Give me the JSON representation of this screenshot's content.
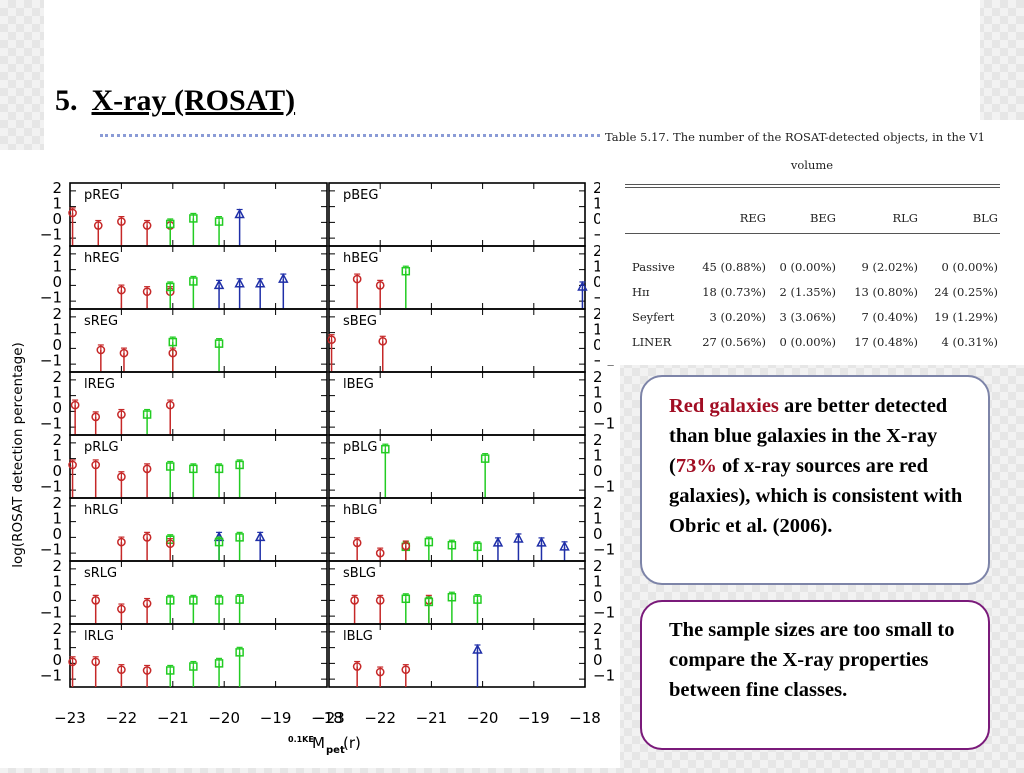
{
  "slide": {
    "number": "5.",
    "title": "X-ray (ROSAT)"
  },
  "table": {
    "caption_line1": "Table 5.17.    The number of the ROSAT-detected objects, in the V1",
    "caption_line2": "volume",
    "columns": [
      "",
      "REG",
      "BEG",
      "RLG",
      "BLG"
    ],
    "rows": [
      [
        "Passive",
        "45 (0.88%)",
        "0 (0.00%)",
        "9 (2.02%)",
        "0 (0.00%)"
      ],
      [
        "Hɪɪ",
        "18 (0.73%)",
        "2 (1.35%)",
        "13 (0.80%)",
        "24 (0.25%)"
      ],
      [
        "Seyfert",
        "3 (0.20%)",
        "3 (3.06%)",
        "7 (0.40%)",
        "19 (1.29%)"
      ],
      [
        "LINER",
        "27 (0.56%)",
        "0 (0.00%)",
        "17 (0.48%)",
        "4 (0.31%)"
      ]
    ]
  },
  "box1": {
    "highlight1": "Red galaxies",
    "text1": " are better detected than blue galaxies in the X-ray (",
    "highlight2": "73%",
    "text2": " of x-ray sources are red galaxies), which is consistent with Obric et al. (2006)."
  },
  "box2": {
    "text": "The sample sizes are too small to compare the X-ray properties between fine classes."
  },
  "figure": {
    "ylabel": "log(ROSAT detection percentage)",
    "xlabel_sup": "0.1KE",
    "xlabel_main": "M",
    "xlabel_sub": "pet",
    "xlabel_tail": "(r)",
    "x_ticks_left": [
      "−23",
      "−22",
      "−21",
      "−20",
      "−19",
      "−18"
    ],
    "x_ticks_right": [
      "−23",
      "−22",
      "−21",
      "−20",
      "−19",
      "−18"
    ],
    "y_ticks": [
      "2",
      "1",
      "0",
      "−1"
    ],
    "colors": {
      "red": "#c62828",
      "green": "#22cc22",
      "blue": "#1f2fa8"
    }
  },
  "chart_data": {
    "type": "scatter",
    "xlabel": "0.1KE M pet (r)",
    "ylabel": "log(ROSAT detection percentage)",
    "xlim": [
      -23,
      -18
    ],
    "ylim": [
      -1.5,
      2.5
    ],
    "series_colors": {
      "red": "#c62828",
      "green": "#22cc22",
      "blue": "#1f2fa8"
    },
    "panels": [
      {
        "name": "pREG",
        "points": [
          [
            -22.95,
            0.6,
            "red"
          ],
          [
            -22.45,
            -0.2,
            "red"
          ],
          [
            -22,
            0.05,
            "red"
          ],
          [
            -21.5,
            -0.2,
            "red"
          ],
          [
            -21.05,
            -0.2,
            "red"
          ],
          [
            -21.05,
            -0.1,
            "green"
          ],
          [
            -20.6,
            0.25,
            "green"
          ],
          [
            -20.1,
            0.05,
            "green"
          ],
          [
            -19.7,
            0.5,
            "blue"
          ]
        ]
      },
      {
        "name": "pBEG",
        "points": []
      },
      {
        "name": "hREG",
        "points": [
          [
            -22,
            -0.3,
            "red"
          ],
          [
            -21.5,
            -0.4,
            "red"
          ],
          [
            -21.05,
            -0.4,
            "red"
          ],
          [
            -21.05,
            -0.1,
            "green"
          ],
          [
            -20.6,
            0.25,
            "green"
          ],
          [
            -20.1,
            0,
            "blue"
          ],
          [
            -19.7,
            0.1,
            "blue"
          ],
          [
            -19.3,
            0.1,
            "blue"
          ],
          [
            -18.85,
            0.4,
            "blue"
          ]
        ]
      },
      {
        "name": "hBEG",
        "points": [
          [
            -22.45,
            0.4,
            "red"
          ],
          [
            -22,
            0,
            "red"
          ],
          [
            -21.5,
            0.9,
            "green"
          ],
          [
            -18.05,
            -0.1,
            "blue"
          ]
        ]
      },
      {
        "name": "sREG",
        "points": [
          [
            -22.4,
            -0.1,
            "red"
          ],
          [
            -21.95,
            -0.3,
            "red"
          ],
          [
            -21,
            0.4,
            "green"
          ],
          [
            -21,
            -0.3,
            "red"
          ],
          [
            -20.1,
            0.3,
            "green"
          ]
        ]
      },
      {
        "name": "sBEG",
        "points": [
          [
            -22.95,
            0.55,
            "red"
          ],
          [
            -21.95,
            0.45,
            "red"
          ]
        ]
      },
      {
        "name": "lREG",
        "points": [
          [
            -22.9,
            0.4,
            "red"
          ],
          [
            -22.5,
            -0.35,
            "red"
          ],
          [
            -22,
            -0.2,
            "red"
          ],
          [
            -21.5,
            -0.2,
            "green"
          ],
          [
            -21.05,
            0.4,
            "red"
          ]
        ]
      },
      {
        "name": "lBEG",
        "points": []
      },
      {
        "name": "pRLG",
        "points": [
          [
            -22.95,
            0.6,
            "red"
          ],
          [
            -22.5,
            0.6,
            "red"
          ],
          [
            -22,
            -0.15,
            "red"
          ],
          [
            -21.5,
            0.35,
            "red"
          ],
          [
            -21.05,
            0.5,
            "green"
          ],
          [
            -20.6,
            0.35,
            "green"
          ],
          [
            -20.1,
            0.35,
            "green"
          ],
          [
            -19.7,
            0.6,
            "green"
          ]
        ]
      },
      {
        "name": "pBLG",
        "points": [
          [
            -21.9,
            1.6,
            "green"
          ],
          [
            -19.95,
            1,
            "green"
          ]
        ]
      },
      {
        "name": "hRLG",
        "points": [
          [
            -22,
            -0.3,
            "red"
          ],
          [
            -21.5,
            0,
            "red"
          ],
          [
            -21.05,
            -0.15,
            "green"
          ],
          [
            -21.05,
            -0.4,
            "red"
          ],
          [
            -20.1,
            0,
            "blue"
          ],
          [
            -20.1,
            -0.3,
            "green"
          ],
          [
            -19.7,
            0,
            "green"
          ],
          [
            -19.3,
            0,
            "blue"
          ]
        ]
      },
      {
        "name": "hBLG",
        "points": [
          [
            -22.45,
            -0.35,
            "red"
          ],
          [
            -22,
            -1,
            "red"
          ],
          [
            -21.5,
            -0.6,
            "green"
          ],
          [
            -21.5,
            -0.55,
            "red"
          ],
          [
            -21.05,
            -0.3,
            "green"
          ],
          [
            -20.6,
            -0.5,
            "green"
          ],
          [
            -20.1,
            -0.6,
            "green"
          ],
          [
            -19.7,
            -0.35,
            "blue"
          ],
          [
            -19.3,
            -0.1,
            "blue"
          ],
          [
            -18.85,
            -0.35,
            "blue"
          ],
          [
            -18.4,
            -0.6,
            "blue"
          ]
        ]
      },
      {
        "name": "sRLG",
        "points": [
          [
            -22.5,
            0,
            "red"
          ],
          [
            -22,
            -0.55,
            "red"
          ],
          [
            -21.5,
            -0.2,
            "red"
          ],
          [
            -21.05,
            0,
            "green"
          ],
          [
            -20.6,
            0,
            "green"
          ],
          [
            -20.1,
            0,
            "green"
          ],
          [
            -19.7,
            0.05,
            "green"
          ]
        ]
      },
      {
        "name": "sBLG",
        "points": [
          [
            -22.5,
            0,
            "red"
          ],
          [
            -22,
            0,
            "red"
          ],
          [
            -21.5,
            0.1,
            "green"
          ],
          [
            -21.05,
            0,
            "red"
          ],
          [
            -21.05,
            -0.1,
            "green"
          ],
          [
            -20.6,
            0.2,
            "green"
          ],
          [
            -20.1,
            0.05,
            "green"
          ]
        ]
      },
      {
        "name": "lRLG",
        "points": [
          [
            -22.95,
            0.1,
            "red"
          ],
          [
            -22.5,
            0.1,
            "red"
          ],
          [
            -22,
            -0.4,
            "red"
          ],
          [
            -21.5,
            -0.45,
            "red"
          ],
          [
            -21.05,
            -0.45,
            "green"
          ],
          [
            -20.6,
            -0.2,
            "green"
          ],
          [
            -20.1,
            0,
            "green"
          ],
          [
            -19.7,
            0.7,
            "green"
          ]
        ]
      },
      {
        "name": "lBLG",
        "points": [
          [
            -22.45,
            -0.2,
            "red"
          ],
          [
            -22,
            -0.55,
            "red"
          ],
          [
            -21.5,
            -0.4,
            "red"
          ],
          [
            -20.1,
            0.85,
            "blue"
          ]
        ]
      }
    ]
  }
}
